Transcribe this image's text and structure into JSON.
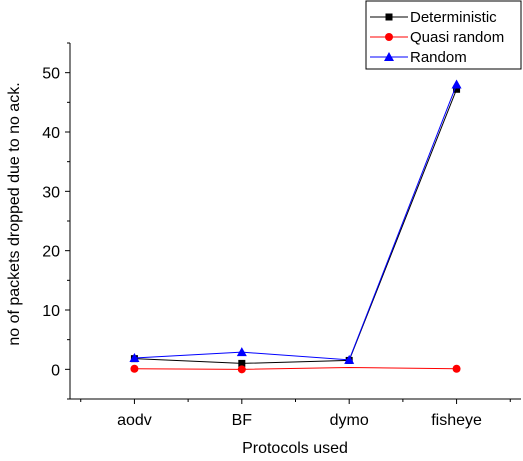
{
  "chart_data": {
    "type": "line",
    "categories": [
      "aodv",
      "BF",
      "dymo",
      "fisheye"
    ],
    "xlabel": "Protocols used",
    "ylabel": "no of packets dropped due to no ack.",
    "ylim": [
      -5,
      55
    ],
    "yticks": [
      0,
      10,
      20,
      30,
      40,
      50
    ],
    "grid": false,
    "legend_position": "top-right",
    "series": [
      {
        "name": "Deterministic",
        "color": "#000000",
        "marker": "square",
        "values": [
          1.8,
          1.0,
          1.5,
          47.2
        ]
      },
      {
        "name": "Quasi random",
        "color": "#ff0000",
        "marker": "circle",
        "values": [
          0.1,
          0.0,
          0.3,
          0.1
        ],
        "last_marker_only": true
      },
      {
        "name": "Random",
        "color": "#0000ff",
        "marker": "triangle",
        "values": [
          1.9,
          2.9,
          1.6,
          48.0
        ]
      }
    ]
  }
}
